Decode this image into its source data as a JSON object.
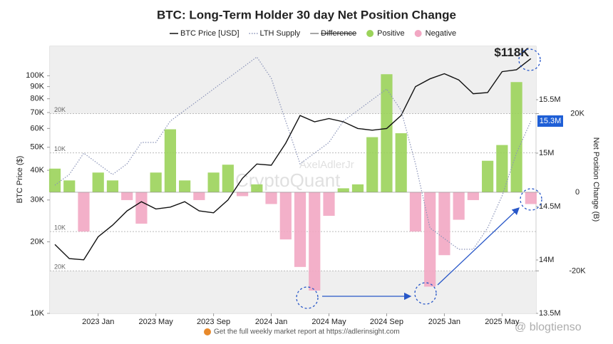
{
  "chart_data": {
    "type": "combo",
    "title": "BTC: Long-Term Holder 30 day Net Position Change",
    "y_label": "BTC Price ($)",
    "y2_label": "Net Position Change (B)",
    "x": [
      "2022-10",
      "2022-11",
      "2022-12",
      "2023-01",
      "2023-02",
      "2023-03",
      "2023-04",
      "2023-05",
      "2023-06",
      "2023-07",
      "2023-08",
      "2023-09",
      "2023-10",
      "2023-11",
      "2023-12",
      "2024-01",
      "2024-02",
      "2024-03",
      "2024-04",
      "2024-05",
      "2024-06",
      "2024-07",
      "2024-08",
      "2024-09",
      "2024-10",
      "2024-11",
      "2024-12",
      "2025-01",
      "2025-02",
      "2025-03",
      "2025-04",
      "2025-05",
      "2025-06",
      "2025-07"
    ],
    "xticks": [
      {
        "value": "2023-01",
        "label": "2023 Jan"
      },
      {
        "value": "2023-05",
        "label": "2023 May"
      },
      {
        "value": "2023-09",
        "label": "2023 Sep"
      },
      {
        "value": "2024-01",
        "label": "2024 Jan"
      },
      {
        "value": "2024-05",
        "label": "2024 May"
      },
      {
        "value": "2024-09",
        "label": "2024 Sep"
      },
      {
        "value": "2025-01",
        "label": "2025 Jan"
      },
      {
        "value": "2025-05",
        "label": "2025 May"
      }
    ],
    "log_scale_y": true,
    "ylim": [
      10000,
      133000
    ],
    "yticks": [
      {
        "value": 10000,
        "label": "10K"
      },
      {
        "value": 20000,
        "label": "20K"
      },
      {
        "value": 30000,
        "label": "30K"
      },
      {
        "value": 40000,
        "label": "40K"
      },
      {
        "value": 50000,
        "label": "50K"
      },
      {
        "value": 60000,
        "label": "60K"
      },
      {
        "value": 70000,
        "label": "70K"
      },
      {
        "value": 80000,
        "label": "80K"
      },
      {
        "value": 90000,
        "label": "90K"
      },
      {
        "value": 100000,
        "label": "100K"
      }
    ],
    "y2lim": [
      -30800,
      37100
    ],
    "y2ticks": [
      {
        "value": -20000,
        "label": "-20K"
      },
      0,
      {
        "value": 20000,
        "label": "20K"
      }
    ],
    "y2grid": [
      {
        "value": 20000,
        "label": "20K"
      },
      {
        "value": 10000,
        "label": "10K"
      },
      {
        "value": -10000,
        "label": "10K"
      },
      {
        "value": -20000,
        "label": "20K"
      }
    ],
    "y3lim": [
      13500000,
      16000000
    ],
    "y3ticks": [
      {
        "value": 13500000,
        "label": "13.5M"
      },
      {
        "value": 14000000,
        "label": "14M"
      },
      {
        "value": 14500000,
        "label": "14.5M"
      },
      {
        "value": 15000000,
        "label": "15M"
      },
      {
        "value": 15500000,
        "label": "15.5M"
      }
    ],
    "series": [
      {
        "name": "BTC Price [USD]",
        "color": "#111111",
        "axis": "y",
        "style": "solid",
        "values": [
          19500,
          17000,
          16800,
          21000,
          23500,
          27000,
          29500,
          27500,
          28000,
          29500,
          27000,
          26500,
          30000,
          37000,
          42500,
          42000,
          52000,
          68000,
          64000,
          66000,
          64000,
          60000,
          59000,
          60000,
          68000,
          90000,
          97000,
          102000,
          96000,
          84000,
          85000,
          104000,
          106000,
          118000
        ]
      },
      {
        "name": "LTH Supply",
        "color": "#8a93b8",
        "axis": "y3",
        "style": "dotted",
        "values": [
          14700000,
          14800000,
          15000000,
          14900000,
          14800000,
          14900000,
          15100000,
          15100000,
          15300000,
          15400000,
          15500000,
          15600000,
          15700000,
          15800000,
          15900000,
          15700000,
          15300000,
          14900000,
          15000000,
          15100000,
          15300000,
          15400000,
          15500000,
          15600000,
          15400000,
          14900000,
          14300000,
          14200000,
          14100000,
          14100000,
          14300000,
          14600000,
          15000000,
          15300000
        ]
      }
    ],
    "legend_disabled": "Difference",
    "net": {
      "axis": "y2",
      "positive": {
        "name": "Positive",
        "color": "#9bd35a"
      },
      "negative": {
        "name": "Negative",
        "color": "#f2a7c3"
      },
      "values": [
        6000,
        3000,
        -10000,
        5000,
        3000,
        -2000,
        -8000,
        5000,
        16000,
        3000,
        -2000,
        5000,
        7000,
        -1000,
        2000,
        -3000,
        -12000,
        -19000,
        -25000,
        -6000,
        1000,
        2000,
        14000,
        30000,
        15000,
        -10000,
        -24000,
        -16000,
        -7000,
        -2000,
        8000,
        12000,
        28000,
        -3000
      ]
    },
    "price_label": {
      "value": 118000,
      "label": "$118K"
    },
    "supply_label": {
      "value": 15300000,
      "label": "15.3M"
    },
    "footer": "Get the full weekly market report at https://adlerinsight.com",
    "watermarks": [
      "AxelAdlerJr",
      "CryptoQuant",
      "@ blogtienso"
    ]
  }
}
